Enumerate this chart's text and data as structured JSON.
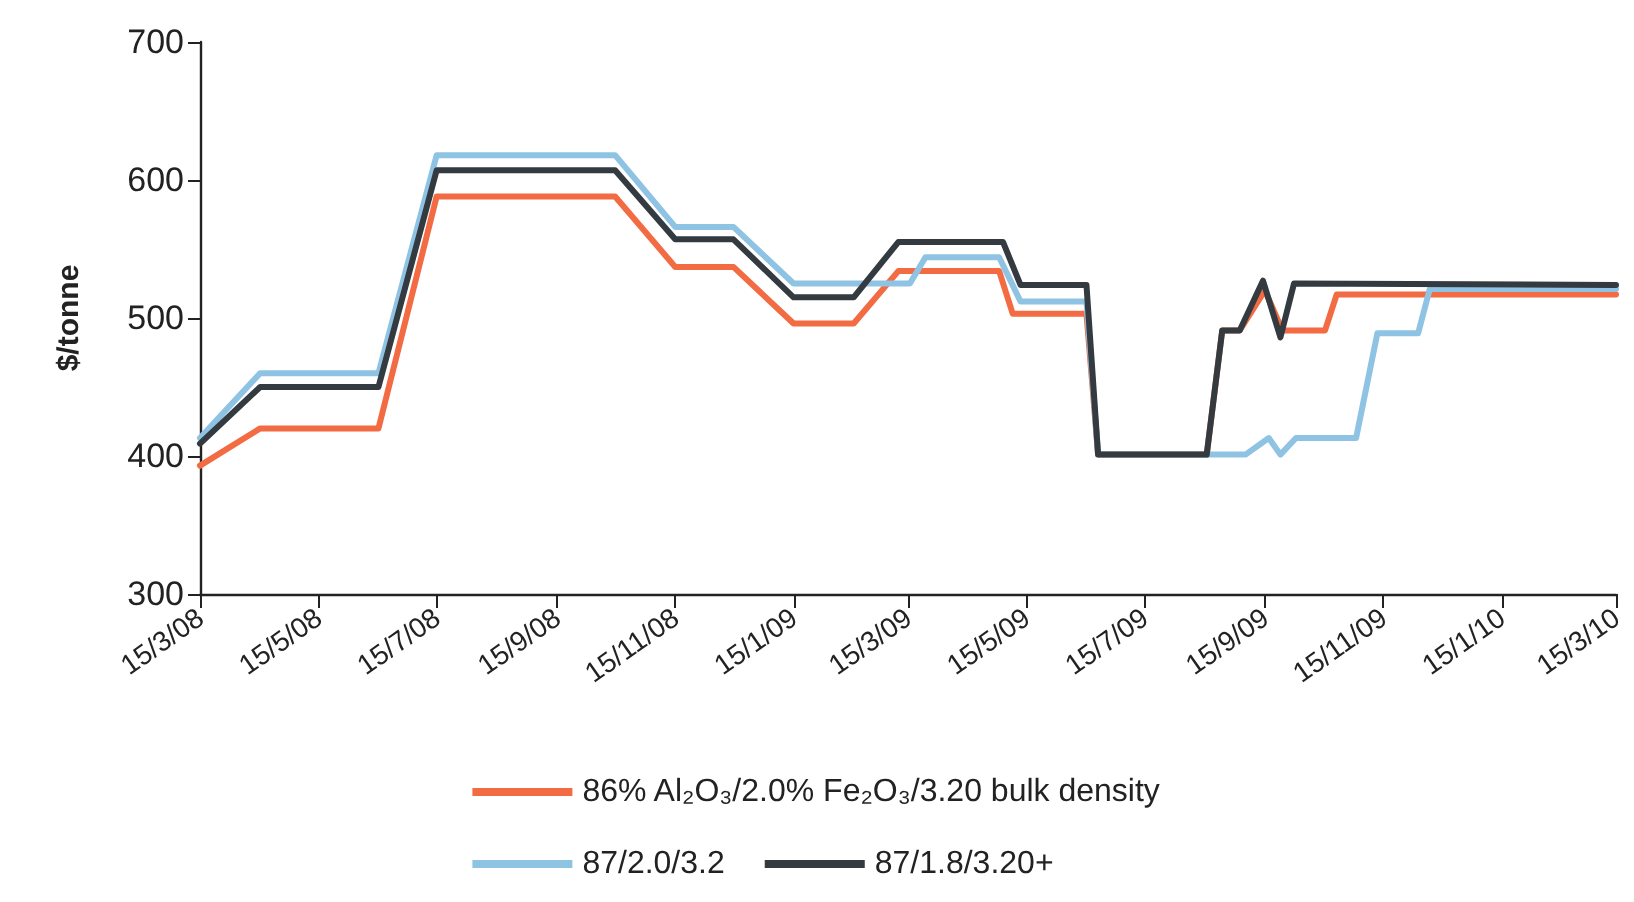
{
  "chart_data": {
    "type": "line",
    "ylabel": "$/tonne",
    "xlim": [
      "2008-03-15",
      "2010-03-15"
    ],
    "xticks": [
      {
        "value": "2008-03-15",
        "label": "15/3/08"
      },
      {
        "value": "2008-05-15",
        "label": "15/5/08"
      },
      {
        "value": "2008-07-15",
        "label": "15/7/08"
      },
      {
        "value": "2008-09-15",
        "label": "15/9/08"
      },
      {
        "value": "2008-11-15",
        "label": "15/11/08"
      },
      {
        "value": "2009-01-15",
        "label": "15/1/09"
      },
      {
        "value": "2009-03-15",
        "label": "15/3/09"
      },
      {
        "value": "2009-05-15",
        "label": "15/5/09"
      },
      {
        "value": "2009-07-15",
        "label": "15/7/09"
      },
      {
        "value": "2009-09-15",
        "label": "15/9/09"
      },
      {
        "value": "2009-11-15",
        "label": "15/11/09"
      },
      {
        "value": "2010-01-15",
        "label": "15/1/10"
      },
      {
        "value": "2010-03-15",
        "label": "15/3/10"
      }
    ],
    "ylim": [
      300,
      700
    ],
    "yticks": [
      300,
      400,
      500,
      600,
      700
    ],
    "grid": false,
    "legend": "bottom",
    "marker": "none",
    "line_style": "solid",
    "series": [
      {
        "name": "86% Al₂O₃/2.0% Fe₂O₃/3.20 bulk density",
        "color": "#f26b43",
        "x": [
          "2008-03-15",
          "2008-04-15",
          "2008-06-15",
          "2008-07-15",
          "2008-10-15",
          "2008-11-15",
          "2008-12-15",
          "2009-01-15",
          "2009-02-15",
          "2009-03-10",
          "2009-05-01",
          "2009-05-08",
          "2009-06-15",
          "2009-06-21",
          "2009-08-16",
          "2009-08-24",
          "2009-09-02",
          "2009-09-15",
          "2009-09-24",
          "2009-10-16",
          "2009-10-22",
          "2010-03-15"
        ],
        "values": [
          393,
          420,
          420,
          588,
          588,
          537,
          537,
          496,
          496,
          534,
          534,
          503,
          503,
          401,
          401,
          491,
          491,
          520,
          491,
          491,
          517,
          517
        ]
      },
      {
        "name": "87/2.0/3.2",
        "color": "#8fc3e3",
        "x": [
          "2008-03-15",
          "2008-04-15",
          "2008-06-15",
          "2008-07-15",
          "2008-10-15",
          "2008-11-15",
          "2008-12-15",
          "2009-01-15",
          "2009-03-16",
          "2009-03-24",
          "2009-05-01",
          "2009-05-12",
          "2009-06-15",
          "2009-06-21",
          "2009-09-05",
          "2009-09-17",
          "2009-09-23",
          "2009-10-01",
          "2009-11-01",
          "2009-11-12",
          "2009-12-03",
          "2009-12-09",
          "2010-03-15"
        ],
        "values": [
          413,
          460,
          460,
          618,
          618,
          566,
          566,
          525,
          525,
          544,
          544,
          512,
          512,
          401,
          401,
          413,
          401,
          413,
          413,
          489,
          489,
          521,
          521
        ]
      },
      {
        "name": "87/1.8/3.20+",
        "color": "#333a40",
        "x": [
          "2008-03-15",
          "2008-04-15",
          "2008-06-15",
          "2008-07-15",
          "2008-10-15",
          "2008-11-15",
          "2008-12-15",
          "2009-01-15",
          "2009-02-15",
          "2009-03-10",
          "2009-05-03",
          "2009-05-12",
          "2009-06-15",
          "2009-06-21",
          "2009-08-16",
          "2009-08-24",
          "2009-09-02",
          "2009-09-14",
          "2009-09-23",
          "2009-09-30",
          "2010-03-15"
        ],
        "values": [
          409,
          450,
          450,
          607,
          607,
          557,
          557,
          515,
          515,
          555,
          555,
          524,
          524,
          401,
          401,
          491,
          491,
          527,
          486,
          525,
          524
        ]
      }
    ]
  }
}
